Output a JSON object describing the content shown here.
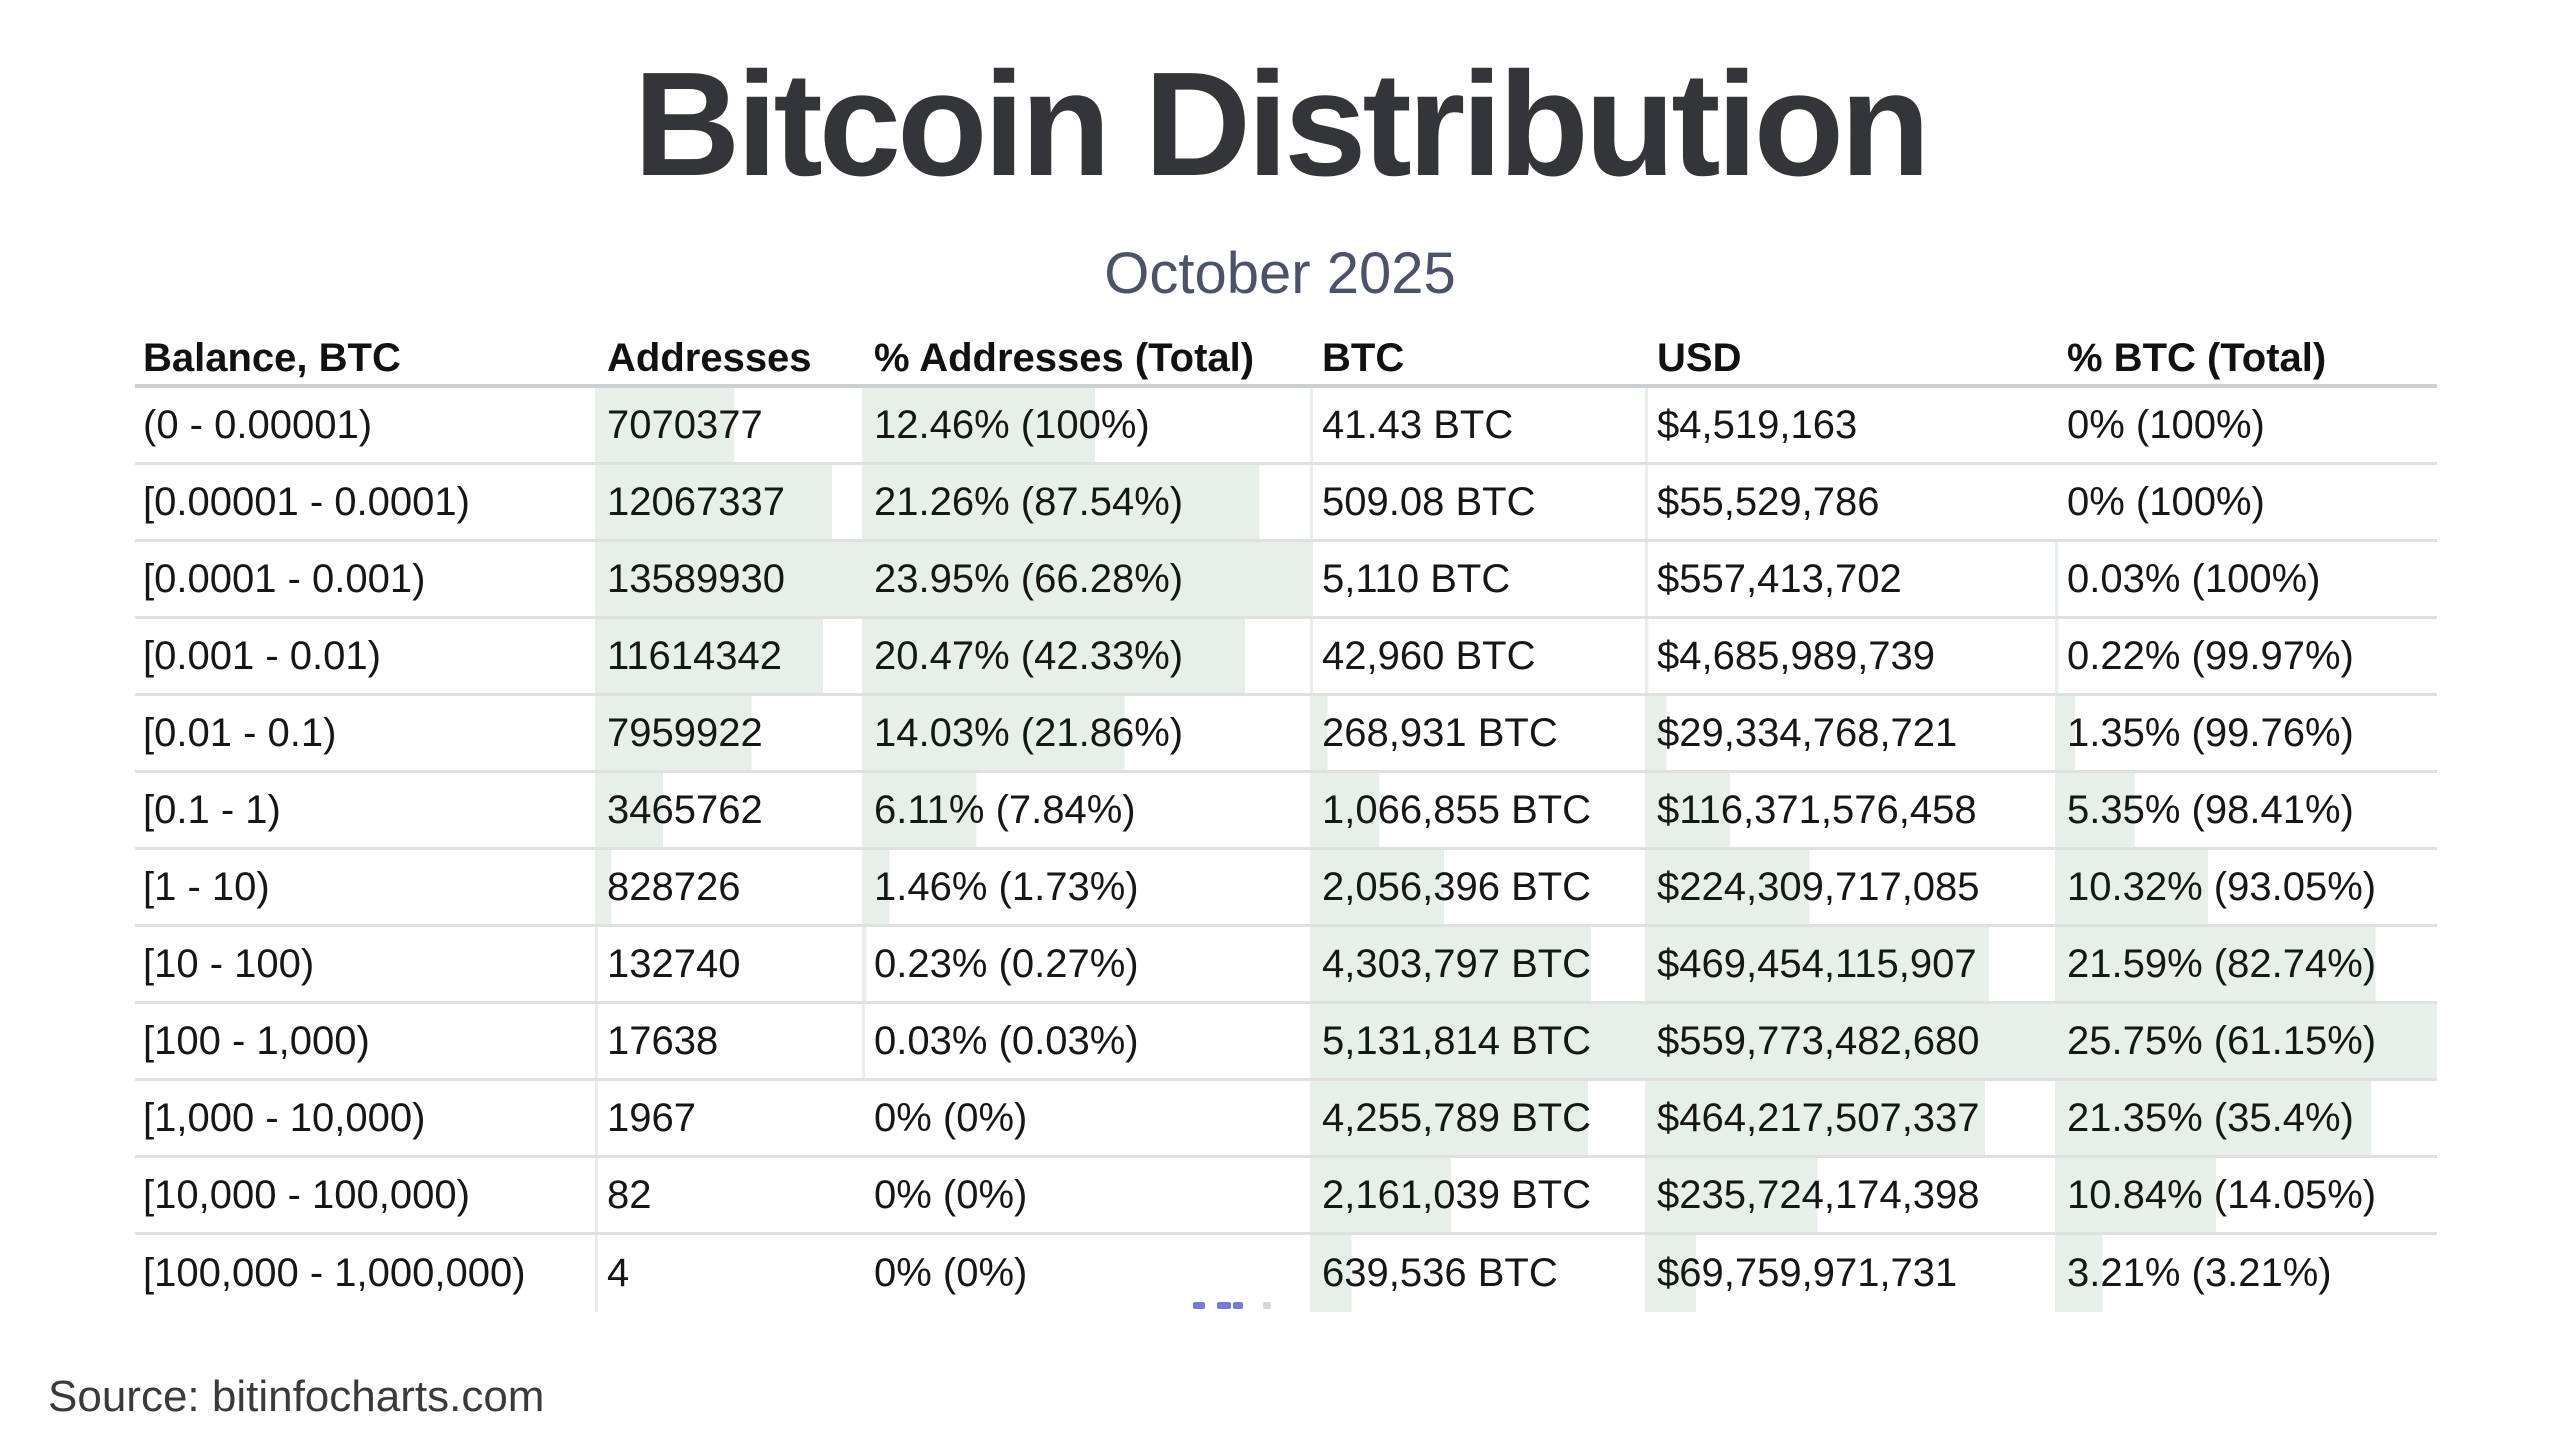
{
  "page": {
    "title": "Bitcoin Distribution",
    "subtitle": "October 2025",
    "source": "Source: bitinfocharts.com"
  },
  "colors": {
    "bar_green": "#e6f0e9",
    "title_text": "#343539",
    "subtitle_text": "#4b5368",
    "body_text": "#161616",
    "row_separator": "#e0e0e0",
    "header_underline": "#ccd0d3"
  },
  "chart_data": {
    "type": "table",
    "title": "Bitcoin Distribution",
    "subtitle": "October 2025",
    "source": "Source: bitinfocharts.com",
    "columns": [
      "Balance, BTC",
      "Addresses",
      "% Addresses (Total)",
      "BTC",
      "USD",
      "% BTC (Total)"
    ],
    "bar_note": "light green in-cell data bars proportional to column maximum",
    "rows": [
      {
        "balance": "(0 - 0.00001)",
        "addresses": "7070377",
        "pct_addresses": "12.46% (100%)",
        "btc": "41.43 BTC",
        "usd": "$4,519,163",
        "pct_btc": "0% (100%)",
        "addresses_num": 7070377,
        "pct_addresses_num": 12.46,
        "btc_num": 41.43,
        "usd_num": 4519163,
        "pct_btc_num": 0
      },
      {
        "balance": "[0.00001 - 0.0001)",
        "addresses": "12067337",
        "pct_addresses": "21.26% (87.54%)",
        "btc": "509.08 BTC",
        "usd": "$55,529,786",
        "pct_btc": "0% (100%)",
        "addresses_num": 12067337,
        "pct_addresses_num": 21.26,
        "btc_num": 509.08,
        "usd_num": 55529786,
        "pct_btc_num": 0
      },
      {
        "balance": "[0.0001 - 0.001)",
        "addresses": "13589930",
        "pct_addresses": "23.95% (66.28%)",
        "btc": "5,110 BTC",
        "usd": "$557,413,702",
        "pct_btc": "0.03% (100%)",
        "addresses_num": 13589930,
        "pct_addresses_num": 23.95,
        "btc_num": 5110,
        "usd_num": 557413702,
        "pct_btc_num": 0.03
      },
      {
        "balance": "[0.001 - 0.01)",
        "addresses": "11614342",
        "pct_addresses": "20.47% (42.33%)",
        "btc": "42,960 BTC",
        "usd": "$4,685,989,739",
        "pct_btc": "0.22% (99.97%)",
        "addresses_num": 11614342,
        "pct_addresses_num": 20.47,
        "btc_num": 42960,
        "usd_num": 4685989739,
        "pct_btc_num": 0.22
      },
      {
        "balance": "[0.01 - 0.1)",
        "addresses": "7959922",
        "pct_addresses": "14.03% (21.86%)",
        "btc": "268,931 BTC",
        "usd": "$29,334,768,721",
        "pct_btc": "1.35% (99.76%)",
        "addresses_num": 7959922,
        "pct_addresses_num": 14.03,
        "btc_num": 268931,
        "usd_num": 29334768721,
        "pct_btc_num": 1.35
      },
      {
        "balance": "[0.1 - 1)",
        "addresses": "3465762",
        "pct_addresses": "6.11% (7.84%)",
        "btc": "1,066,855 BTC",
        "usd": "$116,371,576,458",
        "pct_btc": "5.35% (98.41%)",
        "addresses_num": 3465762,
        "pct_addresses_num": 6.11,
        "btc_num": 1066855,
        "usd_num": 116371576458,
        "pct_btc_num": 5.35
      },
      {
        "balance": "[1 - 10)",
        "addresses": "828726",
        "pct_addresses": "1.46% (1.73%)",
        "btc": "2,056,396 BTC",
        "usd": "$224,309,717,085",
        "pct_btc": "10.32% (93.05%)",
        "addresses_num": 828726,
        "pct_addresses_num": 1.46,
        "btc_num": 2056396,
        "usd_num": 224309717085,
        "pct_btc_num": 10.32
      },
      {
        "balance": "[10 - 100)",
        "addresses": "132740",
        "pct_addresses": "0.23% (0.27%)",
        "btc": "4,303,797 BTC",
        "usd": "$469,454,115,907",
        "pct_btc": "21.59% (82.74%)",
        "addresses_num": 132740,
        "pct_addresses_num": 0.23,
        "btc_num": 4303797,
        "usd_num": 469454115907,
        "pct_btc_num": 21.59
      },
      {
        "balance": "[100 - 1,000)",
        "addresses": "17638",
        "pct_addresses": "0.03% (0.03%)",
        "btc": "5,131,814 BTC",
        "usd": "$559,773,482,680",
        "pct_btc": "25.75% (61.15%)",
        "addresses_num": 17638,
        "pct_addresses_num": 0.03,
        "btc_num": 5131814,
        "usd_num": 559773482680,
        "pct_btc_num": 25.75
      },
      {
        "balance": "[1,000 - 10,000)",
        "addresses": "1967",
        "pct_addresses": "0% (0%)",
        "btc": "4,255,789 BTC",
        "usd": "$464,217,507,337",
        "pct_btc": "21.35% (35.4%)",
        "addresses_num": 1967,
        "pct_addresses_num": 0,
        "btc_num": 4255789,
        "usd_num": 464217507337,
        "pct_btc_num": 21.35
      },
      {
        "balance": "[10,000 - 100,000)",
        "addresses": "82",
        "pct_addresses": "0% (0%)",
        "btc": "2,161,039 BTC",
        "usd": "$235,724,174,398",
        "pct_btc": "10.84% (14.05%)",
        "addresses_num": 82,
        "pct_addresses_num": 0,
        "btc_num": 2161039,
        "usd_num": 235724174398,
        "pct_btc_num": 10.84
      },
      {
        "balance": "[100,000 - 1,000,000)",
        "addresses": "4",
        "pct_addresses": "0% (0%)",
        "btc": "639,536 BTC",
        "usd": "$69,759,971,731",
        "pct_btc": "3.21% (3.21%)",
        "addresses_num": 4,
        "pct_addresses_num": 0,
        "btc_num": 639536,
        "usd_num": 69759971731,
        "pct_btc_num": 3.21
      }
    ]
  }
}
